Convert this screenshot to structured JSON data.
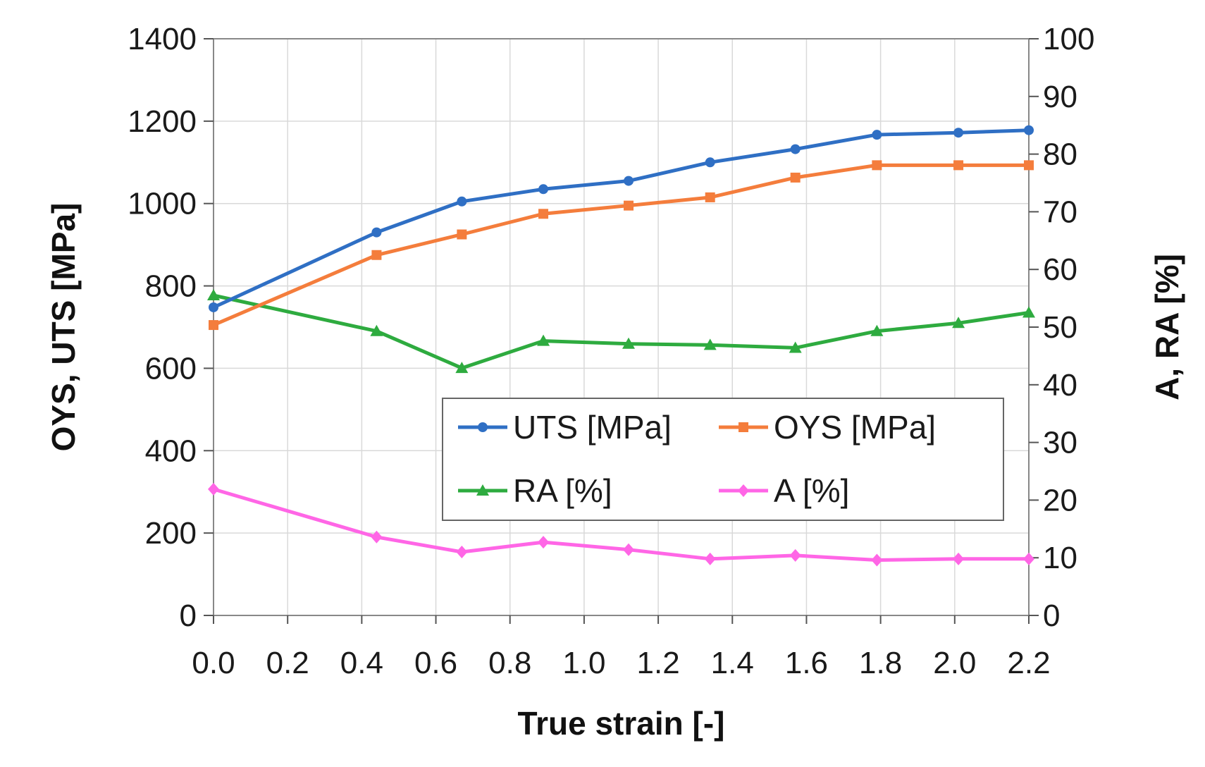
{
  "chart_data": {
    "type": "line",
    "title": "",
    "xlabel": "True strain [-]",
    "ylabel_left": "OYS, UTS [MPa]",
    "ylabel_right": "A, RA [%]",
    "xlim": [
      0.0,
      2.2
    ],
    "ylim_left": [
      0,
      1400
    ],
    "ylim_right": [
      0,
      100
    ],
    "x_ticks": [
      "0.0",
      "0.2",
      "0.4",
      "0.6",
      "0.8",
      "1.0",
      "1.2",
      "1.4",
      "1.6",
      "1.8",
      "2.0",
      "2.2"
    ],
    "y_left_ticks": [
      "0",
      "200",
      "400",
      "600",
      "800",
      "1000",
      "1200",
      "1400"
    ],
    "y_right_ticks": [
      "0",
      "10",
      "20",
      "30",
      "40",
      "50",
      "60",
      "70",
      "80",
      "90",
      "100"
    ],
    "grid": true,
    "legend_position": "center-right",
    "series": [
      {
        "name": "UTS [MPa]",
        "axis": "left",
        "color": "#2f6fc4",
        "marker": "circle",
        "x": [
          0.0,
          0.44,
          0.67,
          0.89,
          1.12,
          1.34,
          1.57,
          1.79,
          2.01,
          2.2
        ],
        "values": [
          748,
          930,
          1005,
          1035,
          1055,
          1100,
          1132,
          1167,
          1172,
          1178
        ]
      },
      {
        "name": "OYS [MPa]",
        "axis": "left",
        "color": "#f47d3c",
        "marker": "square",
        "x": [
          0.0,
          0.44,
          0.67,
          0.89,
          1.12,
          1.34,
          1.57,
          1.79,
          2.01,
          2.2
        ],
        "values": [
          705,
          875,
          925,
          975,
          995,
          1015,
          1063,
          1093,
          1093,
          1093
        ]
      },
      {
        "name": "RA [%]",
        "axis": "right",
        "color": "#2eab3f",
        "marker": "triangle",
        "x": [
          0.0,
          0.44,
          0.67,
          0.89,
          1.12,
          1.34,
          1.57,
          1.79,
          2.01,
          2.2
        ],
        "values": [
          55.5,
          49.3,
          42.9,
          47.6,
          47.1,
          46.9,
          46.4,
          49.3,
          50.7,
          52.5
        ]
      },
      {
        "name": "A [%]",
        "axis": "right",
        "color": "#ff66e6",
        "marker": "diamond",
        "x": [
          0.0,
          0.44,
          0.67,
          0.89,
          1.12,
          1.34,
          1.57,
          1.79,
          2.01,
          2.2
        ],
        "values": [
          21.9,
          13.6,
          11.0,
          12.7,
          11.4,
          9.8,
          10.4,
          9.6,
          9.8,
          9.8
        ]
      }
    ]
  }
}
